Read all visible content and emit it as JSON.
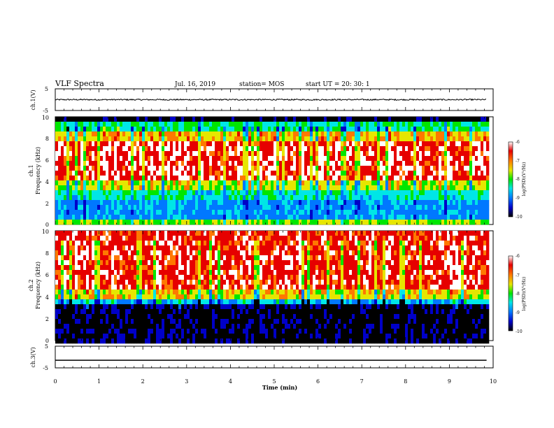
{
  "header": {
    "title": "VLF Spectra",
    "date": "Jul. 16, 2019",
    "station": "station= MOS",
    "start": "start UT =  20: 30: 1"
  },
  "chart_data": [
    {
      "type": "line",
      "name": "ch1-waveform",
      "ylabel": "ch.1(V)",
      "ylim": [
        -5,
        5
      ],
      "yticks": [
        "5",
        "-5"
      ],
      "xlim": [
        0,
        10
      ],
      "description_value": 0.0
    },
    {
      "type": "heatmap",
      "name": "ch1-spectrogram",
      "ylabel": [
        "ch.1",
        "Frequency (kHz)"
      ],
      "ylim": [
        0,
        10
      ],
      "yticks": [
        "0",
        "2",
        "4",
        "6",
        "8",
        "10"
      ],
      "xlim": [
        0,
        9.85
      ],
      "colorbar": {
        "label": "log(PSD)(V²/Hz)",
        "range": [
          -10,
          -6
        ],
        "ticks": [
          "-6",
          "-7",
          "-8",
          "-9",
          "-10"
        ]
      }
    },
    {
      "type": "heatmap",
      "name": "ch2-spectrogram",
      "ylabel": [
        "ch.2",
        "Frequency (kHz)"
      ],
      "ylim": [
        0,
        10
      ],
      "yticks": [
        "0",
        "2",
        "4",
        "6",
        "8",
        "10"
      ],
      "xlim": [
        0,
        9.85
      ],
      "colorbar": {
        "label": "log(PSD)(V²/Hz)",
        "range": [
          -10,
          -6
        ],
        "ticks": [
          "-6",
          "-7",
          "-8",
          "-9",
          "-10"
        ]
      }
    },
    {
      "type": "line",
      "name": "ch3-waveform",
      "ylabel": "ch.3(V)",
      "ylim": [
        -5,
        5
      ],
      "yticks": [
        "5",
        "-5"
      ],
      "xlim": [
        0,
        10
      ],
      "level": -1.5
    }
  ],
  "xaxis": {
    "label": "Time (min)",
    "ticks": [
      "0",
      "1",
      "2",
      "3",
      "4",
      "5",
      "6",
      "7",
      "8",
      "9",
      "10"
    ]
  },
  "colors": {
    "scale": [
      "#000000",
      "#0000c8",
      "#0078ff",
      "#00e6e6",
      "#00e600",
      "#e6e600",
      "#ff7800",
      "#e60000",
      "#ffffff"
    ]
  }
}
